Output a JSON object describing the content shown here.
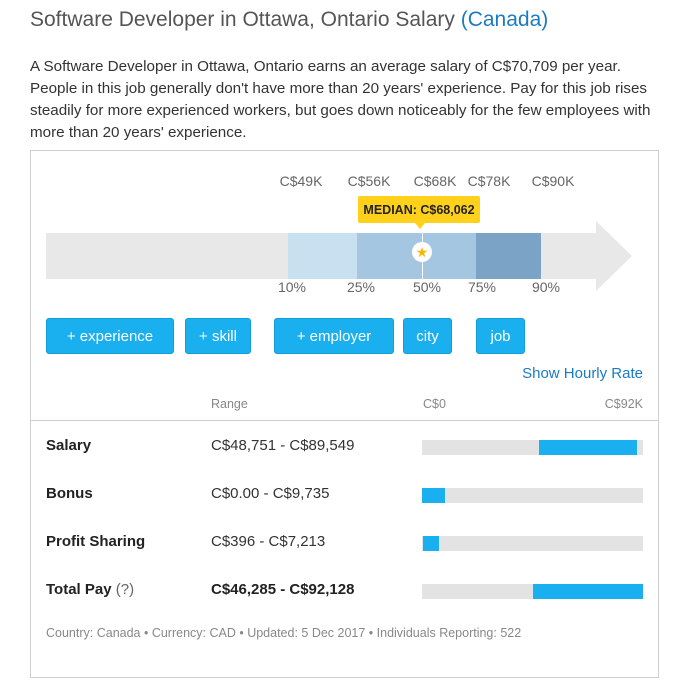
{
  "header": {
    "title": "Software Developer in Ottawa, Ontario Salary",
    "country_link": "(Canada)"
  },
  "summary": "A Software Developer in Ottawa, Ontario earns an average salary of C$70,709 per year. People in this job generally don't have more than 20 years' experience. Pay for this job rises steadily for more experienced workers, but goes down noticeably for the few employees with more than 20 years' experience.",
  "distribution": {
    "median_label": "MEDIAN: C$68,062",
    "pay_labels": [
      "C$49K",
      "C$56K",
      "C$68K",
      "C$78K",
      "C$90K"
    ],
    "percentile_labels": [
      "10%",
      "25%",
      "50%",
      "75%",
      "90%"
    ],
    "colors": {
      "band_10_25": "#c9e0f0",
      "band_25_75": "#a4c6e1",
      "band_75_90": "#7ba3c6",
      "median": "#ffd11a"
    }
  },
  "filters": [
    "+ experience",
    "+ skill",
    "+ employer",
    "city",
    "job"
  ],
  "hourly_link": "Show Hourly Rate",
  "table": {
    "range_header": "Range",
    "axis_min": "C$0",
    "axis_max": "C$92K",
    "axis_max_value": 92000,
    "accent": "#1ab0ef",
    "rows": [
      {
        "label": "Salary",
        "range": "C$48,751 - C$89,549",
        "low": 48751,
        "high": 89549
      },
      {
        "label": "Bonus",
        "range": "C$0.00 - C$9,735",
        "low": 0,
        "high": 9735
      },
      {
        "label": "Profit Sharing",
        "range": "C$396 - C$7,213",
        "low": 396,
        "high": 7213
      },
      {
        "label": "Total Pay",
        "help": "(?)",
        "range": "C$46,285 - C$92,128",
        "low": 46285,
        "high": 92128
      }
    ]
  },
  "footer": "Country: Canada • Currency: CAD • Updated: 5 Dec 2017 • Individuals Reporting: 522"
}
